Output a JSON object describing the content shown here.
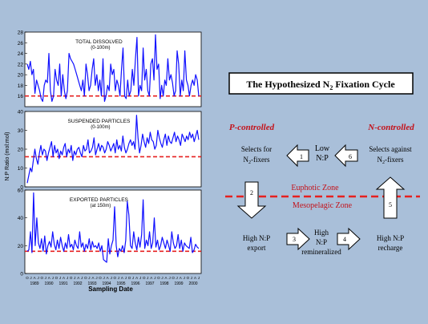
{
  "colors": {
    "background": "#a9bfd9",
    "plot_line": "#1010ff",
    "reference_line": "#e62020",
    "red_text": "#c4121a"
  },
  "chart_data": [
    {
      "type": "line",
      "title": "TOTAL DISSOLVED",
      "subtitle": "(0-100m)",
      "ylim": [
        14,
        28
      ],
      "yticks": [
        16,
        18,
        20,
        22,
        24,
        26,
        28
      ],
      "reference": 16,
      "values": [
        22,
        21,
        22.5,
        20,
        21,
        16.5,
        19,
        18,
        17,
        15.5,
        15,
        18,
        19,
        18.5,
        24,
        17,
        15,
        16,
        21,
        19,
        18,
        22,
        16,
        20,
        17,
        15.5,
        17,
        24,
        23,
        22.5,
        22,
        21,
        20,
        19,
        18,
        17,
        19,
        16,
        22,
        20,
        17,
        18,
        21,
        23,
        18,
        20,
        17,
        19,
        16,
        23,
        15,
        16,
        18,
        17,
        22,
        20,
        21,
        17,
        19,
        18,
        16,
        21,
        25,
        16,
        15.5,
        19,
        16,
        17,
        21,
        18,
        23,
        27,
        16,
        18,
        17,
        25,
        19,
        21,
        17,
        16,
        22,
        23,
        19,
        27.5,
        21,
        22,
        15.5,
        18,
        16,
        19,
        18,
        23,
        19,
        20,
        18.5,
        16,
        17,
        24.5,
        22,
        16,
        19,
        17,
        24.5,
        19,
        18,
        16,
        18,
        19,
        18,
        20,
        19,
        16
      ]
    },
    {
      "type": "line",
      "title": "SUSPENDED PARTICLES",
      "subtitle": "(0-100m)",
      "ylim": [
        0,
        40
      ],
      "yticks": [
        0,
        10,
        20,
        30,
        40
      ],
      "reference": 16,
      "values": [
        2,
        6,
        10,
        8,
        14,
        20,
        15,
        12,
        18,
        22,
        17,
        20,
        19,
        14,
        18,
        21,
        24,
        16,
        22,
        18,
        20,
        15,
        19,
        17,
        21,
        23,
        16,
        20,
        18,
        22,
        14,
        19,
        17,
        20,
        21,
        18,
        16,
        22,
        19,
        20,
        25,
        18,
        19,
        21,
        26,
        17,
        20,
        23,
        19,
        22,
        21,
        18,
        20,
        24,
        22,
        19,
        21,
        23,
        18,
        25,
        20,
        22,
        19,
        27,
        21,
        18,
        20,
        23,
        25,
        22,
        24,
        20,
        38,
        26,
        18,
        22,
        28,
        24,
        21,
        26,
        23,
        29,
        25,
        24,
        20,
        22,
        30,
        26,
        23,
        21,
        25,
        28,
        22,
        27,
        24,
        23,
        26,
        29,
        24,
        27,
        25,
        22,
        28,
        26,
        24,
        27,
        25,
        29,
        26,
        28,
        24,
        27,
        30,
        25
      ]
    },
    {
      "type": "line",
      "title": "EXPORTED PARTICLES",
      "subtitle": "(at 150m)",
      "ylim": [
        0,
        60
      ],
      "yticks": [
        0,
        20,
        40,
        60
      ],
      "reference": 16,
      "values": [
        16,
        17,
        30,
        15,
        58,
        20,
        40,
        22,
        18,
        25,
        16,
        27,
        14,
        20,
        23,
        19,
        30,
        21,
        17,
        24,
        18,
        26,
        20,
        16,
        22,
        18,
        28,
        19,
        21,
        17,
        24,
        20,
        18,
        30,
        19,
        22,
        16,
        21,
        18,
        25,
        17,
        23,
        19,
        20,
        18,
        22,
        16,
        20,
        10,
        9,
        8,
        25,
        14,
        20,
        24,
        48,
        20,
        12,
        18,
        16,
        20,
        15,
        24,
        52,
        42,
        20,
        18,
        30,
        22,
        17,
        26,
        19,
        28,
        53,
        18,
        24,
        20,
        30,
        18,
        22,
        40,
        19,
        24,
        17,
        20,
        26,
        22,
        18,
        24,
        20,
        16,
        30,
        22,
        18,
        20,
        28,
        18,
        24,
        16,
        22,
        20,
        19,
        18,
        26,
        15,
        17,
        21,
        19,
        18
      ]
    }
  ],
  "y_axis_label": "N:P Ratio (mol:mol)",
  "x_axis_label": "Sampling Date",
  "month_labels": [
    "O",
    "J",
    "A",
    "J",
    "O",
    "J",
    "A",
    "J",
    "O",
    "J",
    "A",
    "J",
    "O",
    "J",
    "A",
    "J",
    "O",
    "J",
    "A",
    "J",
    "O",
    "J",
    "A",
    "J",
    "O",
    "J",
    "A",
    "J",
    "O",
    "J",
    "A",
    "J",
    "O",
    "J",
    "A",
    "J",
    "O",
    "J",
    "A",
    "J",
    "O",
    "J",
    "A",
    "J",
    "O",
    "J",
    "A",
    "J"
  ],
  "year_labels": [
    "1989",
    "1990",
    "1991",
    "1992",
    "1993",
    "1994",
    "1995",
    "1996",
    "1997",
    "1998",
    "1999",
    "2000"
  ],
  "diagram": {
    "title_main": "The Hypothesized N",
    "title_sub": "2",
    "title_end": " Fixation  Cycle",
    "p_controlled": "P-controlled",
    "n_controlled": "N-controlled",
    "selects_for_1": "Selects for",
    "selects_for_2": "N",
    "selects_for_3": "2",
    "selects_for_4": "-fixers",
    "low_1": "Low",
    "low_2": "N:P",
    "selects_against_1": "Selects against",
    "selects_against_2": "N",
    "selects_against_3": "2",
    "selects_against_4": "-fixers",
    "euphotic": "Euphotic Zone",
    "mesopelagic": "Mesopelagic Zone",
    "high_export_1": "High N:P",
    "high_export_2": "export",
    "high_remin_1": "High",
    "high_remin_2": "N:P",
    "high_remin_3": "remineralized",
    "high_recharge_1": "High N:P",
    "high_recharge_2": "recharge",
    "arrow_1": "1",
    "arrow_2": "2",
    "arrow_3": "3",
    "arrow_4": "4",
    "arrow_5": "5",
    "arrow_6": "6"
  }
}
